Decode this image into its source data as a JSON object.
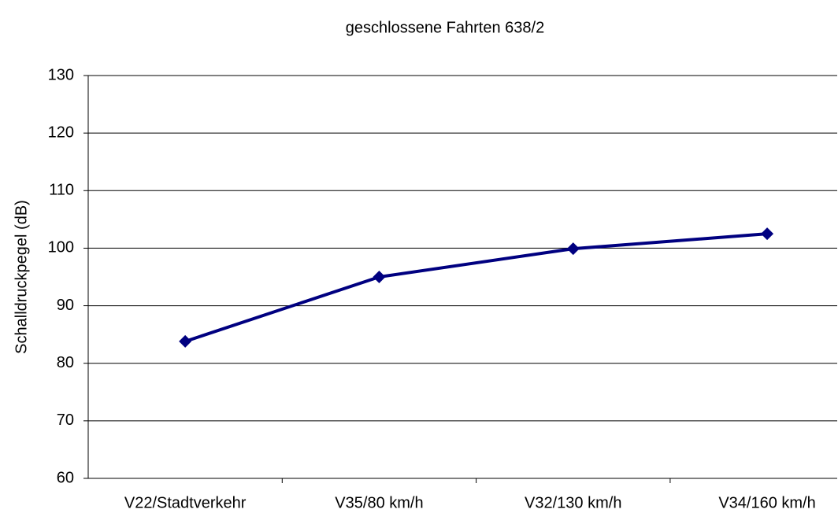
{
  "chart_data": {
    "type": "line",
    "title": "geschlossene Fahrten 638/2",
    "y_label": "Schalldruckpegel (dB)",
    "categories": [
      "V22/Stadtverkehr",
      "V35/80 km/h",
      "V32/130 km/h",
      "V34/160 km/h"
    ],
    "series": [
      {
        "name": "geschlossene Fahrten 638/2",
        "color": "#000080",
        "values": [
          83.8,
          95,
          99.9,
          102.5
        ]
      }
    ],
    "ylim": [
      60,
      130
    ],
    "yticks": [
      60,
      70,
      80,
      90,
      100,
      110,
      120,
      130
    ],
    "grid": true
  }
}
